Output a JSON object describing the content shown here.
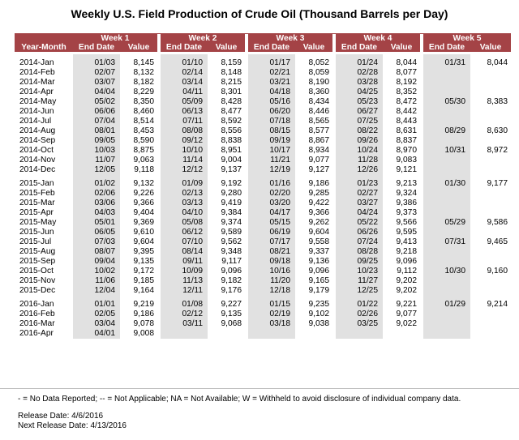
{
  "title": "Weekly U.S. Field Production of Crude Oil (Thousand Barrels per Day)",
  "header": {
    "year_month": "Year-Month",
    "weeks": [
      "Week 1",
      "Week 2",
      "Week 3",
      "Week 4",
      "Week 5"
    ],
    "end_date": "End Date",
    "value": "Value"
  },
  "groups": [
    {
      "rows": [
        {
          "ym": "2014-Jan",
          "w": [
            [
              "01/03",
              "8,145"
            ],
            [
              "01/10",
              "8,159"
            ],
            [
              "01/17",
              "8,052"
            ],
            [
              "01/24",
              "8,044"
            ],
            [
              "01/31",
              "8,044"
            ]
          ]
        },
        {
          "ym": "2014-Feb",
          "w": [
            [
              "02/07",
              "8,132"
            ],
            [
              "02/14",
              "8,148"
            ],
            [
              "02/21",
              "8,059"
            ],
            [
              "02/28",
              "8,077"
            ],
            null
          ]
        },
        {
          "ym": "2014-Mar",
          "w": [
            [
              "03/07",
              "8,182"
            ],
            [
              "03/14",
              "8,215"
            ],
            [
              "03/21",
              "8,190"
            ],
            [
              "03/28",
              "8,192"
            ],
            null
          ]
        },
        {
          "ym": "2014-Apr",
          "w": [
            [
              "04/04",
              "8,229"
            ],
            [
              "04/11",
              "8,301"
            ],
            [
              "04/18",
              "8,360"
            ],
            [
              "04/25",
              "8,352"
            ],
            null
          ]
        },
        {
          "ym": "2014-May",
          "w": [
            [
              "05/02",
              "8,350"
            ],
            [
              "05/09",
              "8,428"
            ],
            [
              "05/16",
              "8,434"
            ],
            [
              "05/23",
              "8,472"
            ],
            [
              "05/30",
              "8,383"
            ]
          ]
        },
        {
          "ym": "2014-Jun",
          "w": [
            [
              "06/06",
              "8,460"
            ],
            [
              "06/13",
              "8,477"
            ],
            [
              "06/20",
              "8,446"
            ],
            [
              "06/27",
              "8,442"
            ],
            null
          ]
        },
        {
          "ym": "2014-Jul",
          "w": [
            [
              "07/04",
              "8,514"
            ],
            [
              "07/11",
              "8,592"
            ],
            [
              "07/18",
              "8,565"
            ],
            [
              "07/25",
              "8,443"
            ],
            null
          ]
        },
        {
          "ym": "2014-Aug",
          "w": [
            [
              "08/01",
              "8,453"
            ],
            [
              "08/08",
              "8,556"
            ],
            [
              "08/15",
              "8,577"
            ],
            [
              "08/22",
              "8,631"
            ],
            [
              "08/29",
              "8,630"
            ]
          ]
        },
        {
          "ym": "2014-Sep",
          "w": [
            [
              "09/05",
              "8,590"
            ],
            [
              "09/12",
              "8,838"
            ],
            [
              "09/19",
              "8,867"
            ],
            [
              "09/26",
              "8,837"
            ],
            null
          ]
        },
        {
          "ym": "2014-Oct",
          "w": [
            [
              "10/03",
              "8,875"
            ],
            [
              "10/10",
              "8,951"
            ],
            [
              "10/17",
              "8,934"
            ],
            [
              "10/24",
              "8,970"
            ],
            [
              "10/31",
              "8,972"
            ]
          ]
        },
        {
          "ym": "2014-Nov",
          "w": [
            [
              "11/07",
              "9,063"
            ],
            [
              "11/14",
              "9,004"
            ],
            [
              "11/21",
              "9,077"
            ],
            [
              "11/28",
              "9,083"
            ],
            null
          ]
        },
        {
          "ym": "2014-Dec",
          "w": [
            [
              "12/05",
              "9,118"
            ],
            [
              "12/12",
              "9,137"
            ],
            [
              "12/19",
              "9,127"
            ],
            [
              "12/26",
              "9,121"
            ],
            null
          ]
        }
      ]
    },
    {
      "rows": [
        {
          "ym": "2015-Jan",
          "w": [
            [
              "01/02",
              "9,132"
            ],
            [
              "01/09",
              "9,192"
            ],
            [
              "01/16",
              "9,186"
            ],
            [
              "01/23",
              "9,213"
            ],
            [
              "01/30",
              "9,177"
            ]
          ]
        },
        {
          "ym": "2015-Feb",
          "w": [
            [
              "02/06",
              "9,226"
            ],
            [
              "02/13",
              "9,280"
            ],
            [
              "02/20",
              "9,285"
            ],
            [
              "02/27",
              "9,324"
            ],
            null
          ]
        },
        {
          "ym": "2015-Mar",
          "w": [
            [
              "03/06",
              "9,366"
            ],
            [
              "03/13",
              "9,419"
            ],
            [
              "03/20",
              "9,422"
            ],
            [
              "03/27",
              "9,386"
            ],
            null
          ]
        },
        {
          "ym": "2015-Apr",
          "w": [
            [
              "04/03",
              "9,404"
            ],
            [
              "04/10",
              "9,384"
            ],
            [
              "04/17",
              "9,366"
            ],
            [
              "04/24",
              "9,373"
            ],
            null
          ]
        },
        {
          "ym": "2015-May",
          "w": [
            [
              "05/01",
              "9,369"
            ],
            [
              "05/08",
              "9,374"
            ],
            [
              "05/15",
              "9,262"
            ],
            [
              "05/22",
              "9,566"
            ],
            [
              "05/29",
              "9,586"
            ]
          ]
        },
        {
          "ym": "2015-Jun",
          "w": [
            [
              "06/05",
              "9,610"
            ],
            [
              "06/12",
              "9,589"
            ],
            [
              "06/19",
              "9,604"
            ],
            [
              "06/26",
              "9,595"
            ],
            null
          ]
        },
        {
          "ym": "2015-Jul",
          "w": [
            [
              "07/03",
              "9,604"
            ],
            [
              "07/10",
              "9,562"
            ],
            [
              "07/17",
              "9,558"
            ],
            [
              "07/24",
              "9,413"
            ],
            [
              "07/31",
              "9,465"
            ]
          ]
        },
        {
          "ym": "2015-Aug",
          "w": [
            [
              "08/07",
              "9,395"
            ],
            [
              "08/14",
              "9,348"
            ],
            [
              "08/21",
              "9,337"
            ],
            [
              "08/28",
              "9,218"
            ],
            null
          ]
        },
        {
          "ym": "2015-Sep",
          "w": [
            [
              "09/04",
              "9,135"
            ],
            [
              "09/11",
              "9,117"
            ],
            [
              "09/18",
              "9,136"
            ],
            [
              "09/25",
              "9,096"
            ],
            null
          ]
        },
        {
          "ym": "2015-Oct",
          "w": [
            [
              "10/02",
              "9,172"
            ],
            [
              "10/09",
              "9,096"
            ],
            [
              "10/16",
              "9,096"
            ],
            [
              "10/23",
              "9,112"
            ],
            [
              "10/30",
              "9,160"
            ]
          ]
        },
        {
          "ym": "2015-Nov",
          "w": [
            [
              "11/06",
              "9,185"
            ],
            [
              "11/13",
              "9,182"
            ],
            [
              "11/20",
              "9,165"
            ],
            [
              "11/27",
              "9,202"
            ],
            null
          ]
        },
        {
          "ym": "2015-Dec",
          "w": [
            [
              "12/04",
              "9,164"
            ],
            [
              "12/11",
              "9,176"
            ],
            [
              "12/18",
              "9,179"
            ],
            [
              "12/25",
              "9,202"
            ],
            null
          ]
        }
      ]
    },
    {
      "rows": [
        {
          "ym": "2016-Jan",
          "w": [
            [
              "01/01",
              "9,219"
            ],
            [
              "01/08",
              "9,227"
            ],
            [
              "01/15",
              "9,235"
            ],
            [
              "01/22",
              "9,221"
            ],
            [
              "01/29",
              "9,214"
            ]
          ]
        },
        {
          "ym": "2016-Feb",
          "w": [
            [
              "02/05",
              "9,186"
            ],
            [
              "02/12",
              "9,135"
            ],
            [
              "02/19",
              "9,102"
            ],
            [
              "02/26",
              "9,077"
            ],
            null
          ]
        },
        {
          "ym": "2016-Mar",
          "w": [
            [
              "03/04",
              "9,078"
            ],
            [
              "03/11",
              "9,068"
            ],
            [
              "03/18",
              "9,038"
            ],
            [
              "03/25",
              "9,022"
            ],
            null
          ]
        },
        {
          "ym": "2016-Apr",
          "w": [
            [
              "04/01",
              "9,008"
            ],
            null,
            null,
            null,
            null
          ]
        }
      ]
    }
  ],
  "notes": {
    "legend": "- = No Data Reported;  -- = Not Applicable;  NA = Not Available;  W = Withheld to avoid disclosure of individual company data.",
    "release_date": "Release Date: 4/6/2016",
    "next_release": "Next Release Date: 4/13/2016"
  },
  "colors": {
    "header_bg": "#a44346",
    "date_bg": "#e1e1e1"
  }
}
